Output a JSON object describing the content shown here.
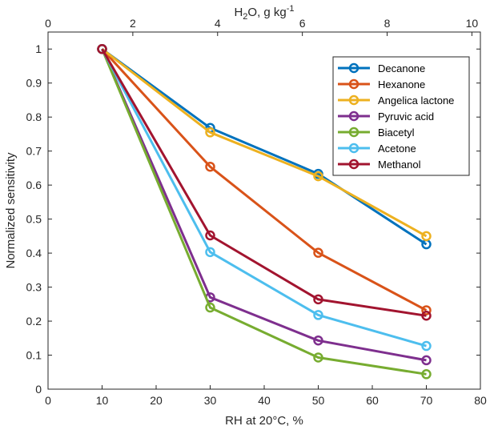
{
  "chart_data": {
    "type": "line",
    "xlabel": "RH at 20°C, %",
    "ylabel": "Normalized sensitivity",
    "top_xlabel": "H2O, g kg-1",
    "xlim": [
      0,
      80
    ],
    "ylim": [
      0,
      1.05
    ],
    "top_xlim": [
      0,
      10.2
    ],
    "x_ticks": [
      0,
      10,
      20,
      30,
      40,
      50,
      60,
      70,
      80
    ],
    "y_ticks": [
      0,
      0.1,
      0.2,
      0.3,
      0.4,
      0.5,
      0.6,
      0.7,
      0.8,
      0.9,
      1
    ],
    "top_x_ticks": [
      0,
      2,
      4,
      6,
      8,
      10
    ],
    "grid": false,
    "legend_position": "top-right",
    "x": [
      10,
      30,
      50,
      70
    ],
    "series": [
      {
        "name": "Decanone",
        "color": "#0072BD",
        "values": [
          1.0,
          0.768,
          0.633,
          0.426
        ]
      },
      {
        "name": "Hexanone",
        "color": "#D95319",
        "values": [
          1.0,
          0.654,
          0.401,
          0.232
        ]
      },
      {
        "name": "Angelica lactone",
        "color": "#EDB120",
        "values": [
          1.0,
          0.755,
          0.626,
          0.45
        ]
      },
      {
        "name": "Pyruvic acid",
        "color": "#7E2F8E",
        "values": [
          1.0,
          0.27,
          0.143,
          0.085
        ]
      },
      {
        "name": "Biacetyl",
        "color": "#77AC30",
        "values": [
          1.0,
          0.24,
          0.093,
          0.044
        ]
      },
      {
        "name": "Acetone",
        "color": "#4DBEEE",
        "values": [
          1.0,
          0.403,
          0.218,
          0.127
        ]
      },
      {
        "name": "Methanol",
        "color": "#A2142F",
        "values": [
          1.0,
          0.452,
          0.264,
          0.216
        ]
      }
    ]
  }
}
